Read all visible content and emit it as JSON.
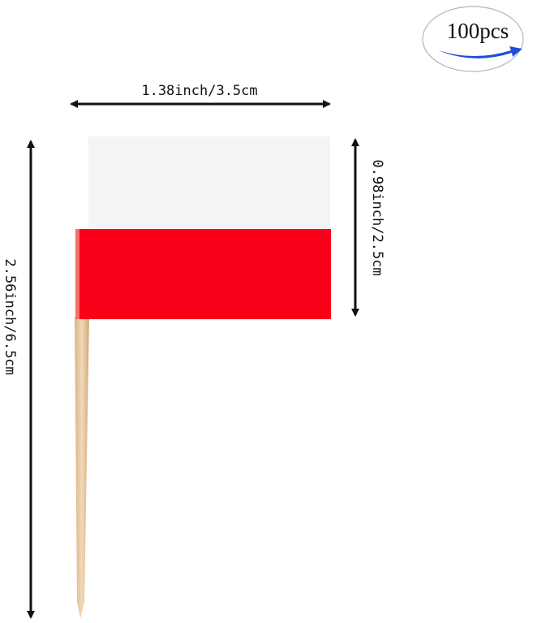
{
  "badge": {
    "quantity": "100pcs",
    "arrow_color": "#1f4fd8"
  },
  "dimensions": {
    "width": "1.38inch/3.5cm",
    "flag_height": "0.98inch/2.5cm",
    "total_height": "2.56inch/6.5cm"
  },
  "flag": {
    "top_color": "#f3f4f6",
    "bottom_color": "#f80018",
    "stick_color": "#e8c9a0"
  }
}
